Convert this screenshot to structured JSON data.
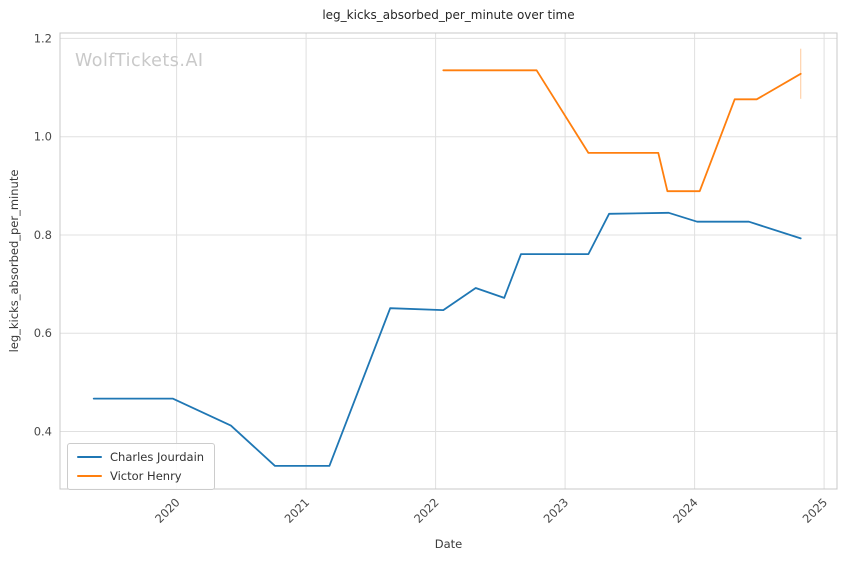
{
  "watermark": {
    "text": "WolfTickets.AI",
    "color": "#c9c9c9"
  },
  "chart_data": {
    "type": "line",
    "title": "leg_kicks_absorbed_per_minute over time",
    "xlabel": "Date",
    "ylabel": "leg_kicks_absorbed_per_minute",
    "x_tick_labels": [
      "2020",
      "2021",
      "2022",
      "2023",
      "2024",
      "2025"
    ],
    "x_tick_values": [
      2020,
      2021,
      2022,
      2023,
      2024,
      2025
    ],
    "y_tick_labels": [
      "0.4",
      "0.6",
      "0.8",
      "1.0",
      "1.2"
    ],
    "y_tick_values": [
      0.4,
      0.6,
      0.8,
      1.0,
      1.2
    ],
    "xlim": [
      2019.1,
      2025.1
    ],
    "ylim": [
      0.283,
      1.211
    ],
    "grid": true,
    "legend_position": "lower left",
    "axis_colors": {
      "grid": "#e0e0e0",
      "spine": "#c8c8c8",
      "tick_text": "#4a4a4a",
      "title_text": "#262626"
    },
    "series": [
      {
        "name": "Charles Jourdain",
        "color": "#1f77b4",
        "points": [
          [
            2019.36,
            0.467
          ],
          [
            2019.97,
            0.467
          ],
          [
            2020.42,
            0.412
          ],
          [
            2020.76,
            0.33
          ],
          [
            2021.18,
            0.33
          ],
          [
            2021.65,
            0.651
          ],
          [
            2022.06,
            0.647
          ],
          [
            2022.31,
            0.692
          ],
          [
            2022.53,
            0.672
          ],
          [
            2022.66,
            0.761
          ],
          [
            2023.18,
            0.761
          ],
          [
            2023.34,
            0.843
          ],
          [
            2023.8,
            0.845
          ],
          [
            2024.02,
            0.827
          ],
          [
            2024.42,
            0.827
          ],
          [
            2024.82,
            0.793
          ]
        ]
      },
      {
        "name": "Victor Henry",
        "color": "#ff7f0e",
        "points": [
          [
            2022.06,
            1.135
          ],
          [
            2022.78,
            1.135
          ],
          [
            2023.18,
            0.967
          ],
          [
            2023.72,
            0.967
          ],
          [
            2023.79,
            0.889
          ],
          [
            2024.04,
            0.889
          ],
          [
            2024.31,
            1.076
          ],
          [
            2024.48,
            1.076
          ],
          [
            2024.82,
            1.128
          ]
        ],
        "end_marker": {
          "x": 2024.82,
          "y_from": 1.077,
          "y_to": 1.179
        }
      }
    ]
  }
}
